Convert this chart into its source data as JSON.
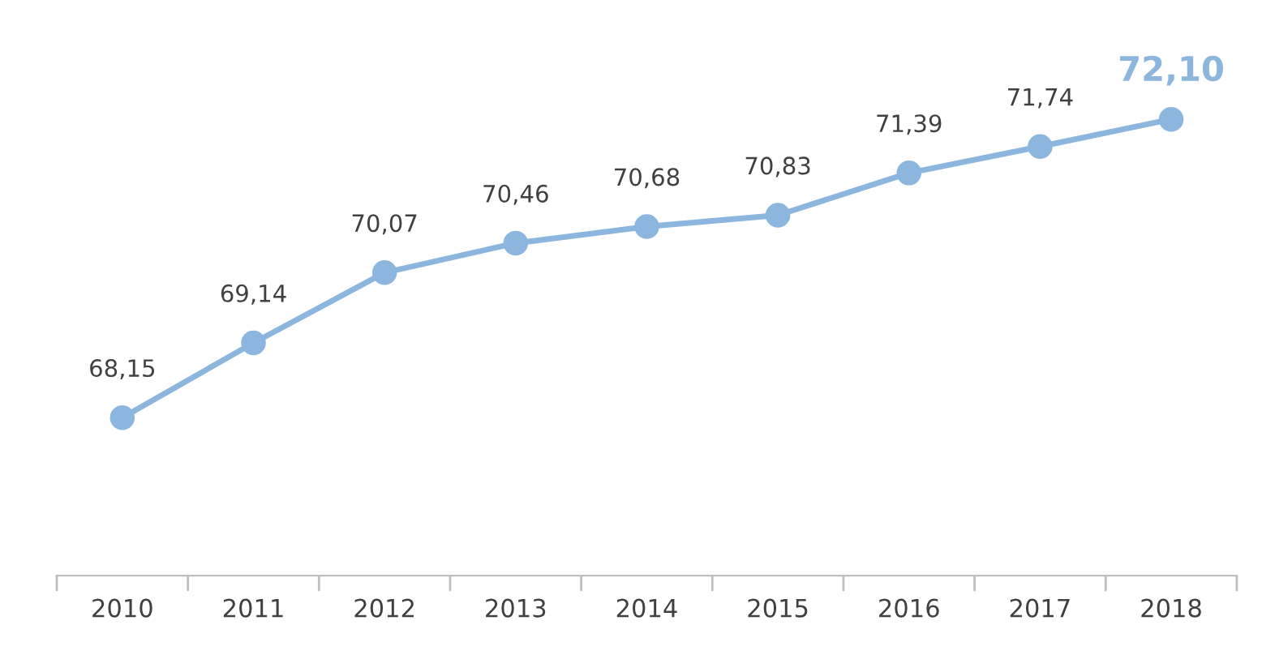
{
  "chart_data": {
    "type": "line",
    "categories": [
      "2010",
      "2011",
      "2012",
      "2013",
      "2014",
      "2015",
      "2016",
      "2017",
      "2018"
    ],
    "series": [
      {
        "color": "#8cb6de",
        "values": [
          68.15,
          69.14,
          70.07,
          70.46,
          70.68,
          70.83,
          71.39,
          71.74,
          72.1
        ],
        "value_labels": [
          "68,15",
          "69,14",
          "70,07",
          "70,46",
          "70,68",
          "70,83",
          "71,39",
          "71,74",
          "72,10"
        ]
      }
    ],
    "tick_labels": "x",
    "marker": "circle",
    "line_style": "solid",
    "grid": false,
    "legend": false
  }
}
